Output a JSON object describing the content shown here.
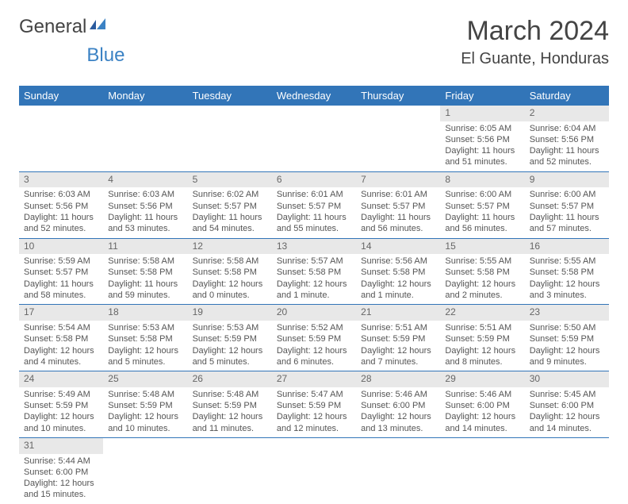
{
  "logo": {
    "text_a": "General",
    "text_b": "Blue",
    "color_a": "#555555",
    "color_b": "#3b82c4"
  },
  "header": {
    "month": "March 2024",
    "location": "El Guante, Honduras"
  },
  "day_names": [
    "Sunday",
    "Monday",
    "Tuesday",
    "Wednesday",
    "Thursday",
    "Friday",
    "Saturday"
  ],
  "colors": {
    "header_bg": "#3275b8",
    "header_fg": "#ffffff",
    "date_bg": "#e8e8e8",
    "border": "#3275b8",
    "text": "#555555"
  },
  "weeks": [
    [
      {
        "empty": true
      },
      {
        "empty": true
      },
      {
        "empty": true
      },
      {
        "empty": true
      },
      {
        "empty": true
      },
      {
        "date": "1",
        "sunrise": "Sunrise: 6:05 AM",
        "sunset": "Sunset: 5:56 PM",
        "daylight": "Daylight: 11 hours and 51 minutes."
      },
      {
        "date": "2",
        "sunrise": "Sunrise: 6:04 AM",
        "sunset": "Sunset: 5:56 PM",
        "daylight": "Daylight: 11 hours and 52 minutes."
      }
    ],
    [
      {
        "date": "3",
        "sunrise": "Sunrise: 6:03 AM",
        "sunset": "Sunset: 5:56 PM",
        "daylight": "Daylight: 11 hours and 52 minutes."
      },
      {
        "date": "4",
        "sunrise": "Sunrise: 6:03 AM",
        "sunset": "Sunset: 5:56 PM",
        "daylight": "Daylight: 11 hours and 53 minutes."
      },
      {
        "date": "5",
        "sunrise": "Sunrise: 6:02 AM",
        "sunset": "Sunset: 5:57 PM",
        "daylight": "Daylight: 11 hours and 54 minutes."
      },
      {
        "date": "6",
        "sunrise": "Sunrise: 6:01 AM",
        "sunset": "Sunset: 5:57 PM",
        "daylight": "Daylight: 11 hours and 55 minutes."
      },
      {
        "date": "7",
        "sunrise": "Sunrise: 6:01 AM",
        "sunset": "Sunset: 5:57 PM",
        "daylight": "Daylight: 11 hours and 56 minutes."
      },
      {
        "date": "8",
        "sunrise": "Sunrise: 6:00 AM",
        "sunset": "Sunset: 5:57 PM",
        "daylight": "Daylight: 11 hours and 56 minutes."
      },
      {
        "date": "9",
        "sunrise": "Sunrise: 6:00 AM",
        "sunset": "Sunset: 5:57 PM",
        "daylight": "Daylight: 11 hours and 57 minutes."
      }
    ],
    [
      {
        "date": "10",
        "sunrise": "Sunrise: 5:59 AM",
        "sunset": "Sunset: 5:57 PM",
        "daylight": "Daylight: 11 hours and 58 minutes."
      },
      {
        "date": "11",
        "sunrise": "Sunrise: 5:58 AM",
        "sunset": "Sunset: 5:58 PM",
        "daylight": "Daylight: 11 hours and 59 minutes."
      },
      {
        "date": "12",
        "sunrise": "Sunrise: 5:58 AM",
        "sunset": "Sunset: 5:58 PM",
        "daylight": "Daylight: 12 hours and 0 minutes."
      },
      {
        "date": "13",
        "sunrise": "Sunrise: 5:57 AM",
        "sunset": "Sunset: 5:58 PM",
        "daylight": "Daylight: 12 hours and 1 minute."
      },
      {
        "date": "14",
        "sunrise": "Sunrise: 5:56 AM",
        "sunset": "Sunset: 5:58 PM",
        "daylight": "Daylight: 12 hours and 1 minute."
      },
      {
        "date": "15",
        "sunrise": "Sunrise: 5:55 AM",
        "sunset": "Sunset: 5:58 PM",
        "daylight": "Daylight: 12 hours and 2 minutes."
      },
      {
        "date": "16",
        "sunrise": "Sunrise: 5:55 AM",
        "sunset": "Sunset: 5:58 PM",
        "daylight": "Daylight: 12 hours and 3 minutes."
      }
    ],
    [
      {
        "date": "17",
        "sunrise": "Sunrise: 5:54 AM",
        "sunset": "Sunset: 5:58 PM",
        "daylight": "Daylight: 12 hours and 4 minutes."
      },
      {
        "date": "18",
        "sunrise": "Sunrise: 5:53 AM",
        "sunset": "Sunset: 5:58 PM",
        "daylight": "Daylight: 12 hours and 5 minutes."
      },
      {
        "date": "19",
        "sunrise": "Sunrise: 5:53 AM",
        "sunset": "Sunset: 5:59 PM",
        "daylight": "Daylight: 12 hours and 5 minutes."
      },
      {
        "date": "20",
        "sunrise": "Sunrise: 5:52 AM",
        "sunset": "Sunset: 5:59 PM",
        "daylight": "Daylight: 12 hours and 6 minutes."
      },
      {
        "date": "21",
        "sunrise": "Sunrise: 5:51 AM",
        "sunset": "Sunset: 5:59 PM",
        "daylight": "Daylight: 12 hours and 7 minutes."
      },
      {
        "date": "22",
        "sunrise": "Sunrise: 5:51 AM",
        "sunset": "Sunset: 5:59 PM",
        "daylight": "Daylight: 12 hours and 8 minutes."
      },
      {
        "date": "23",
        "sunrise": "Sunrise: 5:50 AM",
        "sunset": "Sunset: 5:59 PM",
        "daylight": "Daylight: 12 hours and 9 minutes."
      }
    ],
    [
      {
        "date": "24",
        "sunrise": "Sunrise: 5:49 AM",
        "sunset": "Sunset: 5:59 PM",
        "daylight": "Daylight: 12 hours and 10 minutes."
      },
      {
        "date": "25",
        "sunrise": "Sunrise: 5:48 AM",
        "sunset": "Sunset: 5:59 PM",
        "daylight": "Daylight: 12 hours and 10 minutes."
      },
      {
        "date": "26",
        "sunrise": "Sunrise: 5:48 AM",
        "sunset": "Sunset: 5:59 PM",
        "daylight": "Daylight: 12 hours and 11 minutes."
      },
      {
        "date": "27",
        "sunrise": "Sunrise: 5:47 AM",
        "sunset": "Sunset: 5:59 PM",
        "daylight": "Daylight: 12 hours and 12 minutes."
      },
      {
        "date": "28",
        "sunrise": "Sunrise: 5:46 AM",
        "sunset": "Sunset: 6:00 PM",
        "daylight": "Daylight: 12 hours and 13 minutes."
      },
      {
        "date": "29",
        "sunrise": "Sunrise: 5:46 AM",
        "sunset": "Sunset: 6:00 PM",
        "daylight": "Daylight: 12 hours and 14 minutes."
      },
      {
        "date": "30",
        "sunrise": "Sunrise: 5:45 AM",
        "sunset": "Sunset: 6:00 PM",
        "daylight": "Daylight: 12 hours and 14 minutes."
      }
    ],
    [
      {
        "date": "31",
        "sunrise": "Sunrise: 5:44 AM",
        "sunset": "Sunset: 6:00 PM",
        "daylight": "Daylight: 12 hours and 15 minutes."
      },
      {
        "empty": true
      },
      {
        "empty": true
      },
      {
        "empty": true
      },
      {
        "empty": true
      },
      {
        "empty": true
      },
      {
        "empty": true
      }
    ]
  ]
}
